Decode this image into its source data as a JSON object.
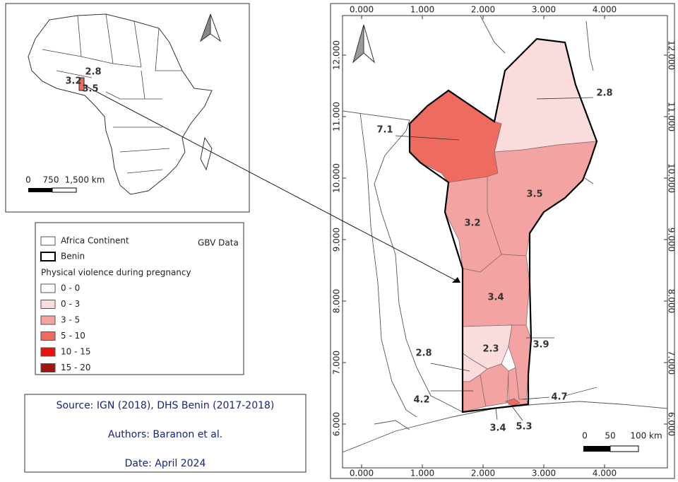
{
  "inset": {
    "labels": [
      "2.8",
      "3.2",
      "3.5"
    ],
    "scale": [
      "0",
      "750",
      "1,500 km"
    ]
  },
  "legend": {
    "items": [
      {
        "label": "Africa Continent"
      },
      {
        "label": "Benin"
      }
    ],
    "source_name": "GBV Data",
    "title": "Physical violence during pregnancy",
    "classes": [
      {
        "label": "0 - 0",
        "color": "#ffffff"
      },
      {
        "label": "0 - 3",
        "color": "#fbdcdc"
      },
      {
        "label": "3 - 5",
        "color": "#f4a3a3"
      },
      {
        "label": "5 - 10",
        "color": "#ee6b5f"
      },
      {
        "label": "10 - 15",
        "color": "#e8120f"
      },
      {
        "label": "15 - 20",
        "color": "#a3140b"
      }
    ]
  },
  "credits": {
    "source": "Source: IGN (2018), DHS Benin  (2017-2018)",
    "authors": "Authors: Baranon et al.",
    "date": "Date: April 2024"
  },
  "map": {
    "xticks": [
      {
        "value": 0,
        "label": "0.000"
      },
      {
        "value": 1,
        "label": "1.000"
      },
      {
        "value": 2,
        "label": "2.000"
      },
      {
        "value": 3,
        "label": "3.000"
      },
      {
        "value": 4,
        "label": "4.000"
      }
    ],
    "yticks": [
      {
        "value": 6,
        "label": "6.000"
      },
      {
        "value": 7,
        "label": "7.000"
      },
      {
        "value": 8,
        "label": "8.000"
      },
      {
        "value": 9,
        "label": "9.000"
      },
      {
        "value": 10,
        "label": "10.000"
      },
      {
        "value": 11,
        "label": "11.000"
      },
      {
        "value": 12,
        "label": "12.000"
      }
    ],
    "regions": [
      {
        "value": 2.8,
        "color": "#fbdcdc"
      },
      {
        "value": 7.1,
        "color": "#ee6b5f"
      },
      {
        "value": 3.5,
        "color": "#f4a3a3"
      },
      {
        "value": 3.2,
        "color": "#f4a3a3"
      },
      {
        "value": 3.4,
        "color": "#f4a3a3"
      },
      {
        "value": 2.3,
        "color": "#fbdcdc"
      },
      {
        "value": 3.9,
        "color": "#f4a3a3"
      },
      {
        "value": 2.8,
        "color": "#fbdcdc"
      },
      {
        "value": 4.2,
        "color": "#f4a3a3"
      },
      {
        "value": 3.4,
        "color": "#f4a3a3"
      },
      {
        "value": 4.7,
        "color": "#f4a3a3"
      },
      {
        "value": 5.3,
        "color": "#ee6b5f"
      }
    ],
    "scale": [
      "0",
      "50",
      "100 km"
    ]
  }
}
